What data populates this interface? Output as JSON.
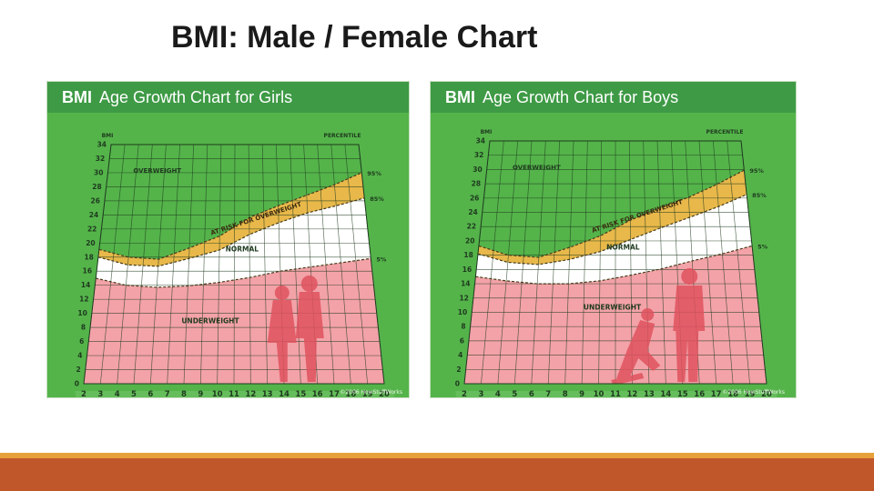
{
  "slide": {
    "title": "BMI: Male / Female Chart"
  },
  "colors": {
    "panel_green": "#54b44a",
    "header_green": "#3e9a45",
    "grid_dark": "#1f3a1f",
    "overweight_band": "#e8b84a",
    "normal_band": "#ffffff",
    "underweight_area": "#f3a2a8",
    "silhouette": "#e0535f",
    "footer_orange": "#c0572b",
    "footer_gold": "#e6a13a"
  },
  "chart_data": [
    {
      "type": "area",
      "panel": "girls",
      "header_bold": "BMI",
      "header_rest": "Age Growth Chart for Girls",
      "ylabel": "BMI",
      "xlabel": "AGE (Years)",
      "percentile_label": "PERCENTILE",
      "x_ticks": [
        "2",
        "3",
        "4",
        "5",
        "6",
        "7",
        "8",
        "9",
        "10",
        "11",
        "12",
        "13",
        "14",
        "15",
        "16",
        "17",
        "18",
        "19",
        "20"
      ],
      "y_ticks": [
        "0",
        "2",
        "4",
        "6",
        "8",
        "10",
        "12",
        "14",
        "16",
        "18",
        "20",
        "22",
        "24",
        "26",
        "28",
        "30",
        "32",
        "34"
      ],
      "xlim": [
        2,
        20
      ],
      "ylim": [
        0,
        34
      ],
      "series": [
        {
          "name": "95%",
          "x": [
            2,
            4,
            6,
            8,
            10,
            12,
            14,
            16,
            18,
            20
          ],
          "values": [
            19.1,
            18.0,
            17.7,
            19.3,
            21.0,
            23.6,
            25.3,
            26.8,
            28.3,
            30.0
          ]
        },
        {
          "name": "85%",
          "x": [
            2,
            4,
            6,
            8,
            10,
            12,
            14,
            16,
            18,
            20
          ],
          "values": [
            18.0,
            16.9,
            16.7,
            17.8,
            19.0,
            21.2,
            22.9,
            24.3,
            25.3,
            26.4
          ]
        },
        {
          "name": "5%",
          "x": [
            2,
            4,
            6,
            8,
            10,
            12,
            14,
            16,
            18,
            20
          ],
          "values": [
            15.0,
            14.0,
            13.7,
            13.9,
            14.4,
            15.1,
            16.0,
            16.6,
            17.2,
            17.8
          ]
        }
      ],
      "zone_labels": [
        "OVERWEIGHT",
        "AT RISK FOR OVERWEIGHT",
        "NORMAL",
        "UNDERWEIGHT"
      ],
      "copyright": "©2006 HowStuffWorks"
    },
    {
      "type": "area",
      "panel": "boys",
      "header_bold": "BMI",
      "header_rest": "Age Growth Chart for Boys",
      "ylabel": "BMI",
      "xlabel": "AGE (Years)",
      "percentile_label": "PERCENTILE",
      "x_ticks": [
        "2",
        "3",
        "4",
        "5",
        "6",
        "7",
        "8",
        "9",
        "10",
        "11",
        "12",
        "13",
        "14",
        "15",
        "16",
        "17",
        "18",
        "19",
        "20"
      ],
      "y_ticks": [
        "0",
        "2",
        "4",
        "6",
        "8",
        "10",
        "12",
        "14",
        "16",
        "18",
        "20",
        "22",
        "24",
        "26",
        "28",
        "30",
        "32",
        "34"
      ],
      "xlim": [
        2,
        20
      ],
      "ylim": [
        0,
        34
      ],
      "series": [
        {
          "name": "95%",
          "x": [
            2,
            4,
            6,
            8,
            10,
            12,
            14,
            16,
            18,
            20
          ],
          "values": [
            19.3,
            18.0,
            17.7,
            19.1,
            20.7,
            22.9,
            24.6,
            26.1,
            27.9,
            29.9
          ]
        },
        {
          "name": "85%",
          "x": [
            2,
            4,
            6,
            8,
            10,
            12,
            14,
            16,
            18,
            20
          ],
          "values": [
            18.2,
            17.0,
            16.7,
            17.4,
            18.5,
            20.2,
            21.8,
            23.3,
            24.8,
            26.5
          ]
        },
        {
          "name": "5%",
          "x": [
            2,
            4,
            6,
            8,
            10,
            12,
            14,
            16,
            18,
            20
          ],
          "values": [
            15.0,
            14.4,
            14.0,
            14.0,
            14.4,
            15.2,
            16.1,
            17.2,
            18.2,
            19.3
          ]
        }
      ],
      "zone_labels": [
        "OVERWEIGHT",
        "AT RISK FOR OVERWEIGHT",
        "NORMAL",
        "UNDERWEIGHT"
      ],
      "copyright": "©2006 HowStuffWorks"
    }
  ]
}
